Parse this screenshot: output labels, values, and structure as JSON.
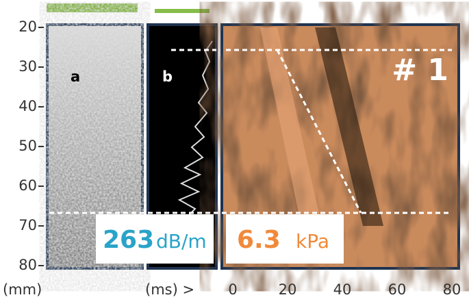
{
  "y_axis": {
    "unit": "(mm)",
    "ticks": [
      20,
      30,
      40,
      50,
      60,
      70,
      80
    ]
  },
  "x_axis": {
    "unit": "(ms) >",
    "ticks": [
      0,
      20,
      40,
      60,
      80
    ]
  },
  "panels": {
    "a": "a",
    "b": "b",
    "exam": "# 1"
  },
  "cap": {
    "value": "263",
    "unit": "dB/m"
  },
  "stiffness": {
    "value": "6.3",
    "unit": "kPa"
  }
}
